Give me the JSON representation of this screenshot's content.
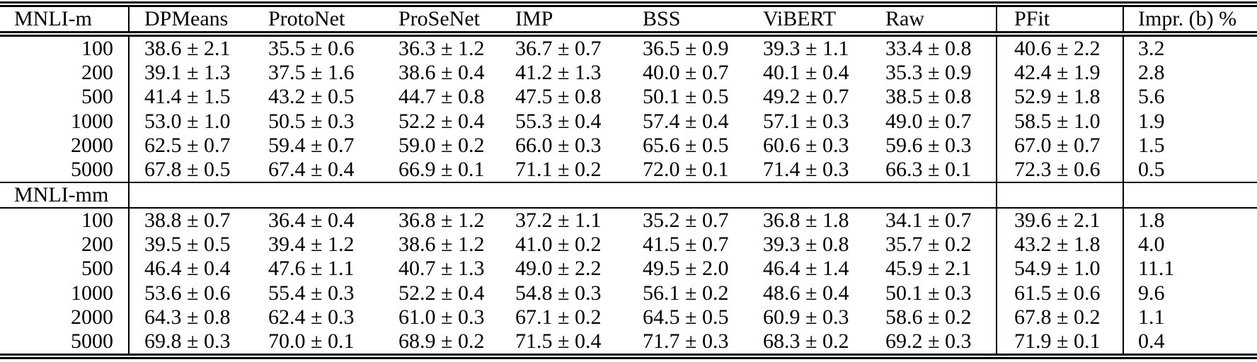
{
  "chart_data": {
    "type": "table",
    "plus_minus": "±",
    "columns": [
      "MNLI-m",
      "DPMeans",
      "ProtoNet",
      "ProSeNet",
      "IMP",
      "BSS",
      "ViBERT",
      "Raw",
      "PFit",
      "Impr. (b) %"
    ],
    "sections": [
      {
        "name": "MNLI-m",
        "rows": [
          {
            "size": "100",
            "cells": [
              "38.6 ± 2.1",
              "35.5 ± 0.6",
              "36.3 ± 1.2",
              "36.7 ± 0.7",
              "36.5 ± 0.9",
              "39.3 ± 1.1",
              "33.4 ± 0.8",
              "40.6 ± 2.2",
              "3.2"
            ]
          },
          {
            "size": "200",
            "cells": [
              "39.1 ± 1.3",
              "37.5 ± 1.6",
              "38.6 ± 0.4",
              "41.2 ± 1.3",
              "40.0 ± 0.7",
              "40.1 ± 0.4",
              "35.3 ± 0.9",
              "42.4 ± 1.9",
              "2.8"
            ]
          },
          {
            "size": "500",
            "cells": [
              "41.4 ± 1.5",
              "43.2 ± 0.5",
              "44.7 ± 0.8",
              "47.5 ± 0.8",
              "50.1 ± 0.5",
              "49.2 ± 0.7",
              "38.5 ± 0.8",
              "52.9 ± 1.8",
              "5.6"
            ]
          },
          {
            "size": "1000",
            "cells": [
              "53.0 ± 1.0",
              "50.5 ± 0.3",
              "52.2 ± 0.4",
              "55.3 ± 0.4",
              "57.4 ± 0.4",
              "57.1 ± 0.3",
              "49.0 ± 0.7",
              "58.5 ± 1.0",
              "1.9"
            ]
          },
          {
            "size": "2000",
            "cells": [
              "62.5 ± 0.7",
              "59.4 ± 0.7",
              "59.0 ± 0.2",
              "66.0 ± 0.3",
              "65.6 ± 0.5",
              "60.6 ± 0.3",
              "59.6 ± 0.3",
              "67.0 ± 0.7",
              "1.5"
            ]
          },
          {
            "size": "5000",
            "cells": [
              "67.8 ± 0.5",
              "67.4 ± 0.4",
              "66.9 ± 0.1",
              "71.1 ± 0.2",
              "72.0 ± 0.1",
              "71.4 ± 0.3",
              "66.3 ± 0.1",
              "72.3 ± 0.6",
              "0.5"
            ]
          }
        ]
      },
      {
        "name": "MNLI-mm",
        "rows": [
          {
            "size": "100",
            "cells": [
              "38.8 ± 0.7",
              "36.4 ± 0.4",
              "36.8 ± 1.2",
              "37.2 ± 1.1",
              "35.2 ± 0.7",
              "36.8 ± 1.8",
              "34.1 ± 0.7",
              "39.6 ± 2.1",
              "1.8"
            ]
          },
          {
            "size": "200",
            "cells": [
              "39.5 ± 0.5",
              "39.4 ± 1.2",
              "38.6 ± 1.2",
              "41.0 ± 0.2",
              "41.5 ± 0.7",
              "39.3 ± 0.8",
              "35.7 ± 0.2",
              "43.2 ± 1.8",
              "4.0"
            ]
          },
          {
            "size": "500",
            "cells": [
              "46.4 ± 0.4",
              "47.6 ± 1.1",
              "40.7 ± 1.3",
              "49.0 ± 2.2",
              "49.5 ± 2.0",
              "46.4 ± 1.4",
              "45.9 ± 2.1",
              "54.9 ± 1.0",
              "11.1"
            ]
          },
          {
            "size": "1000",
            "cells": [
              "53.6 ± 0.6",
              "55.4 ± 0.3",
              "52.2 ± 0.4",
              "54.8 ± 0.3",
              "56.1 ± 0.2",
              "48.6 ± 0.4",
              "50.1 ± 0.3",
              "61.5 ± 0.6",
              "9.6"
            ]
          },
          {
            "size": "2000",
            "cells": [
              "64.3 ± 0.8",
              "62.4 ± 0.3",
              "61.0 ± 0.3",
              "67.1 ± 0.2",
              "64.5 ± 0.5",
              "60.9 ± 0.3",
              "58.6 ± 0.2",
              "67.8 ± 0.2",
              "1.1"
            ]
          },
          {
            "size": "5000",
            "cells": [
              "69.8 ± 0.3",
              "70.0 ± 0.1",
              "68.9 ± 0.2",
              "71.5 ± 0.4",
              "71.7 ± 0.3",
              "68.3 ± 0.2",
              "69.2 ± 0.3",
              "71.9 ± 0.1",
              "0.4"
            ]
          }
        ]
      }
    ]
  }
}
